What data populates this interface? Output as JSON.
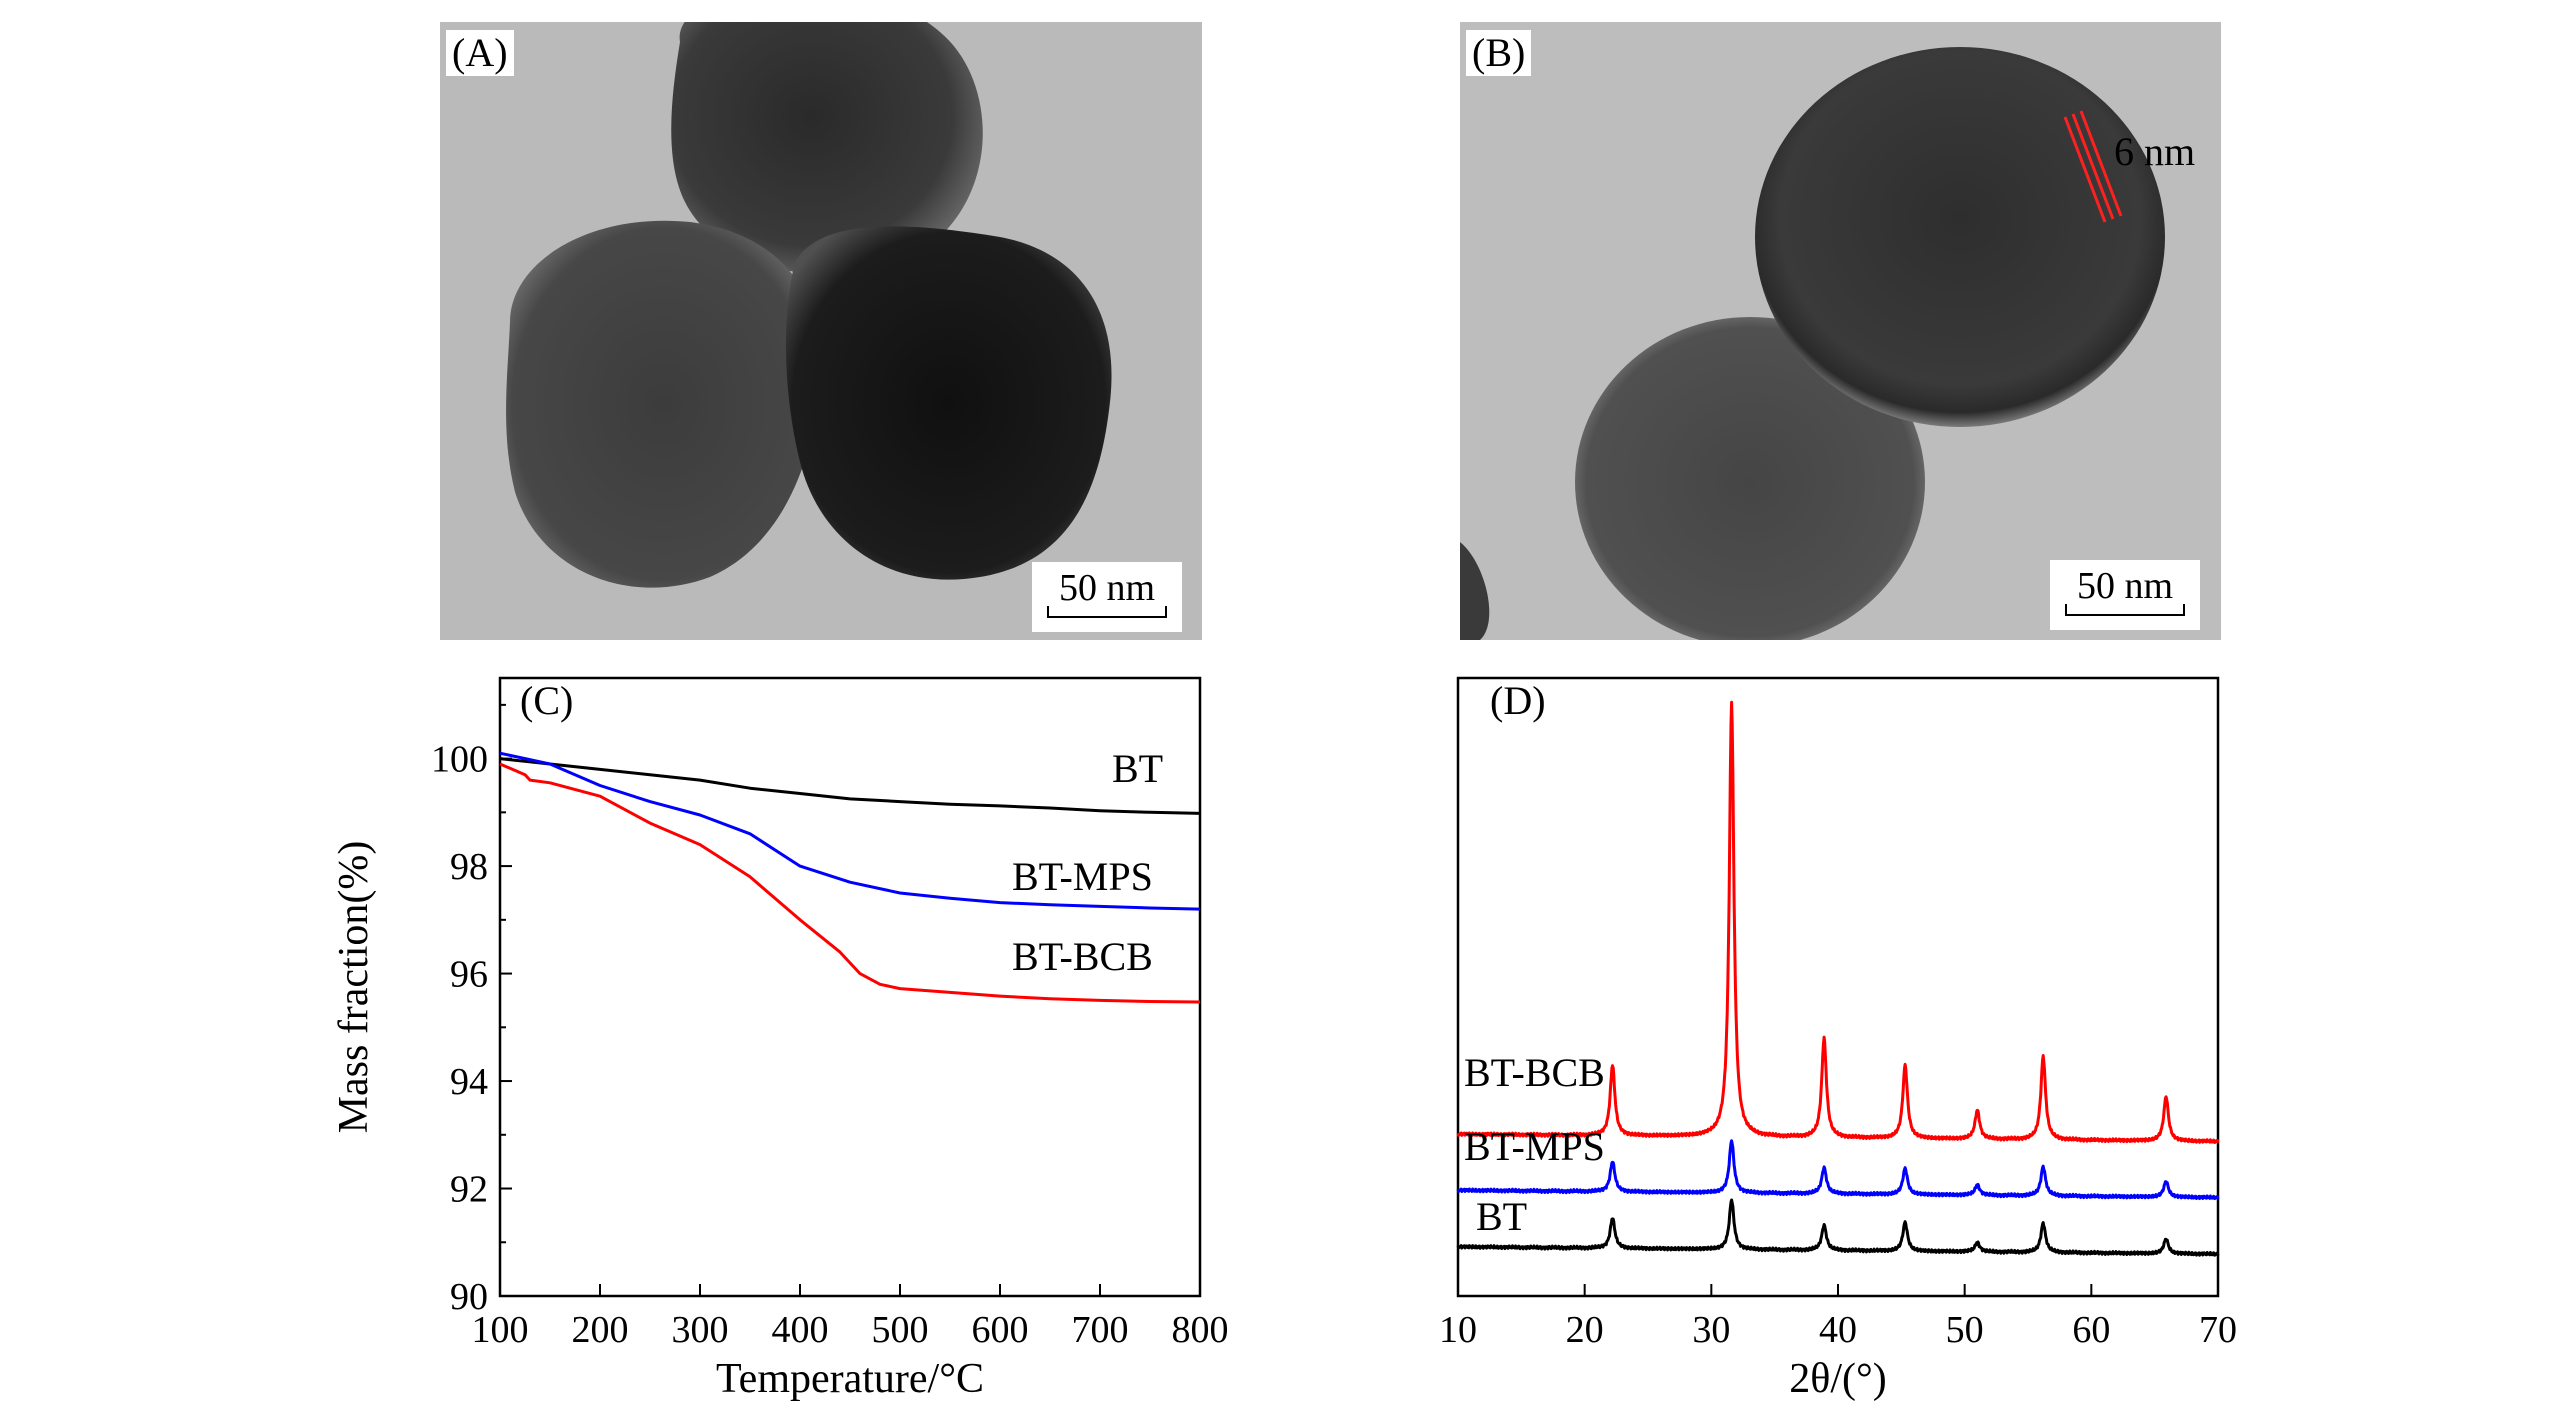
{
  "panels": {
    "A": {
      "label": "(A)",
      "scale_bar": "50 nm"
    },
    "B": {
      "label": "(B)",
      "scale_bar": "50 nm",
      "shell_annotation": "6 nm"
    }
  },
  "chart_data": [
    {
      "panel": "(C)",
      "type": "line",
      "xlabel": "Temperature/°C",
      "ylabel": "Mass fraction(%)",
      "xlim": [
        100,
        800
      ],
      "ylim": [
        90,
        101.5
      ],
      "xticks": [
        100,
        200,
        300,
        400,
        500,
        600,
        700,
        800
      ],
      "yticks": [
        90,
        92,
        94,
        96,
        98,
        100
      ],
      "series": [
        {
          "name": "BT",
          "color": "#000000",
          "x": [
            100,
            150,
            200,
            250,
            300,
            350,
            400,
            450,
            500,
            550,
            600,
            650,
            700,
            750,
            800
          ],
          "y": [
            100.0,
            99.9,
            99.8,
            99.7,
            99.6,
            99.45,
            99.35,
            99.25,
            99.2,
            99.15,
            99.12,
            99.08,
            99.03,
            99.0,
            98.98
          ]
        },
        {
          "name": "BT-MPS",
          "color": "#0000ff",
          "x": [
            100,
            150,
            200,
            250,
            300,
            350,
            400,
            450,
            500,
            550,
            600,
            650,
            700,
            750,
            800
          ],
          "y": [
            100.1,
            99.9,
            99.5,
            99.2,
            98.95,
            98.6,
            98.0,
            97.7,
            97.5,
            97.4,
            97.32,
            97.28,
            97.25,
            97.22,
            97.2
          ]
        },
        {
          "name": "BT-BCB",
          "color": "#ff0000",
          "x": [
            100,
            125,
            130,
            150,
            200,
            250,
            300,
            350,
            400,
            440,
            460,
            480,
            500,
            550,
            600,
            650,
            700,
            750,
            800
          ],
          "y": [
            99.9,
            99.7,
            99.6,
            99.55,
            99.3,
            98.8,
            98.4,
            97.8,
            97.0,
            96.4,
            96.0,
            95.8,
            95.72,
            95.65,
            95.58,
            95.53,
            95.5,
            95.48,
            95.47
          ]
        }
      ],
      "curve_labels": [
        "BT",
        "BT-MPS",
        "BT-BCB"
      ]
    },
    {
      "panel": "(D)",
      "type": "line",
      "xlabel": "2θ/(°)",
      "xlim": [
        10,
        70
      ],
      "xticks": [
        10,
        20,
        30,
        40,
        50,
        60,
        70
      ],
      "peaks_2theta": [
        22.2,
        31.6,
        38.9,
        45.3,
        51.0,
        56.2,
        65.9
      ],
      "series": [
        {
          "name": "BT",
          "color": "#000000",
          "baseline": 0.8,
          "peak_heights": [
            0.58,
            0.95,
            0.48,
            0.55,
            0.18,
            0.56,
            0.28
          ]
        },
        {
          "name": "BT-MPS",
          "color": "#0000ff",
          "baseline": 1.88,
          "peak_heights": [
            0.58,
            1.0,
            0.5,
            0.5,
            0.2,
            0.56,
            0.3
          ]
        },
        {
          "name": "BT-BCB",
          "color": "#ff0000",
          "baseline": 2.95,
          "peak_heights": [
            1.35,
            8.3,
            1.9,
            1.4,
            0.55,
            1.6,
            0.85
          ]
        }
      ],
      "curve_labels": [
        "BT-BCB",
        "BT-MPS",
        "BT"
      ]
    }
  ]
}
